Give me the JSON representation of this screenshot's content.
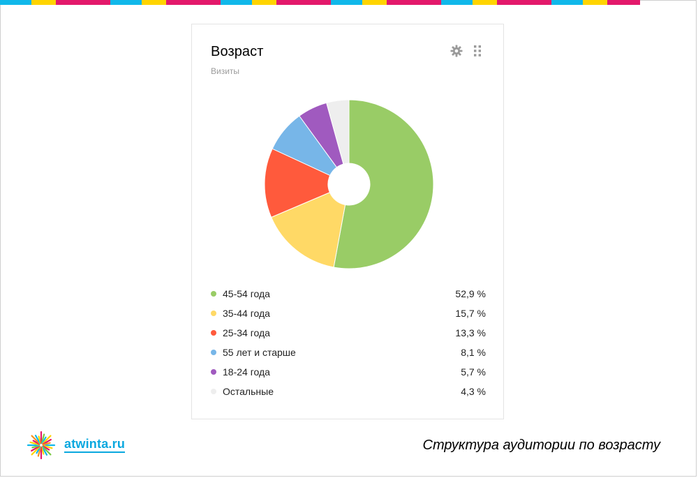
{
  "decor": {
    "stripe_colors": [
      "#11b8ea",
      "#ffd400",
      "#e3196b",
      "#11b8ea",
      "#ffd400",
      "#e3196b",
      "#11b8ea",
      "#ffd400",
      "#e3196b",
      "#11b8ea",
      "#ffd400",
      "#e3196b",
      "#11b8ea",
      "#ffd400",
      "#e3196b",
      "#11b8ea",
      "#ffd400",
      "#e3196b"
    ],
    "stripe_widths": [
      45,
      35,
      78,
      45,
      35,
      78,
      45,
      35,
      78,
      45,
      35,
      78,
      45,
      35,
      78,
      45,
      35,
      47
    ]
  },
  "widget": {
    "title": "Возраст",
    "subtitle": "Визиты",
    "tools": [
      {
        "name": "gear-icon"
      },
      {
        "name": "drag-handle-icon"
      }
    ]
  },
  "chart_data": {
    "type": "pie",
    "title": "Возраст",
    "subtitle": "Визиты",
    "donut": true,
    "categories": [
      "45-54 года",
      "35-44 года",
      "25-34 года",
      "55 лет и старше",
      "18-24 года",
      "Остальные"
    ],
    "values": [
      52.9,
      15.7,
      13.3,
      8.1,
      5.7,
      4.3
    ],
    "value_labels": [
      "52,9 %",
      "15,7 %",
      "13,3 %",
      "8,1 %",
      "5,7 %",
      "4,3 %"
    ],
    "colors": [
      "#99cc66",
      "#ffd966",
      "#ff5a3c",
      "#77b6e8",
      "#a05abf",
      "#eeeeee"
    ],
    "legend_position": "bottom"
  },
  "footer": {
    "logo_text": "atwinta.ru",
    "caption": "Структура аудитории по возрасту"
  }
}
